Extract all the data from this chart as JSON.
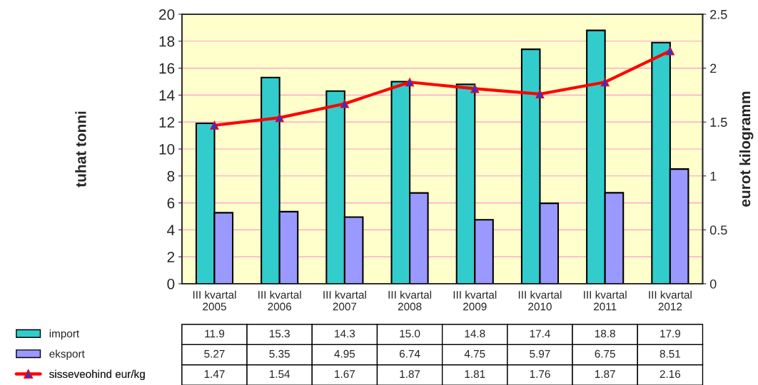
{
  "chart_data": {
    "type": "bar",
    "categories": [
      "III kvartal\n2005",
      "III kvartal\n2006",
      "III kvartal\n2007",
      "III kvartal\n2008",
      "III kvartal\n2009",
      "III kvartal\n2010",
      "III kvartal\n2011",
      "III kvartal\n2012"
    ],
    "series": [
      {
        "name": "import",
        "color": "#33cccc",
        "values": [
          11.9,
          15.3,
          14.3,
          15.0,
          14.8,
          17.4,
          18.8,
          17.9
        ],
        "value_labels": [
          "11.9",
          "15.3",
          "14.3",
          "15.0",
          "14.8",
          "17.4",
          "18.8",
          "17.9"
        ]
      },
      {
        "name": "eksport",
        "color": "#9999ff",
        "values": [
          5.27,
          5.35,
          4.95,
          6.74,
          4.75,
          5.97,
          6.75,
          8.51
        ]
      },
      {
        "name": "sisseveohind eur/kg",
        "type": "line",
        "axis": "y2",
        "color": "#ff0000",
        "marker": "triangle",
        "values": [
          1.47,
          1.54,
          1.67,
          1.87,
          1.81,
          1.76,
          1.87,
          2.16
        ]
      }
    ],
    "ylabel": "tuhat tonni",
    "y2label": "eurot kilogramm",
    "ylim": [
      0,
      20
    ],
    "yticks": [
      0,
      2,
      4,
      6,
      8,
      10,
      12,
      14,
      16,
      18,
      20
    ],
    "y2lim": [
      0,
      2.5
    ],
    "y2ticks": [
      0,
      0.5,
      1,
      1.5,
      2,
      2.5
    ],
    "grid": "y",
    "legend": "bottom",
    "data_labels": true
  }
}
